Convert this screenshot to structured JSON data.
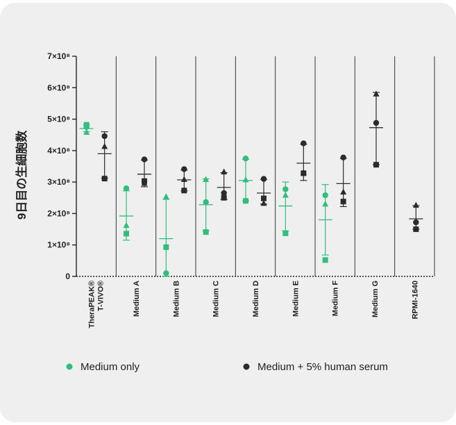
{
  "chart_data": {
    "type": "scatter",
    "ylabel": "9日目の生細胞数",
    "yticks": [
      {
        "value": 0,
        "label": "0"
      },
      {
        "value": 100000000,
        "label": "1×10⁸"
      },
      {
        "value": 200000000,
        "label": "2×10⁸"
      },
      {
        "value": 300000000,
        "label": "3×10⁸"
      },
      {
        "value": 400000000,
        "label": "4×10⁸"
      },
      {
        "value": 500000000,
        "label": "5×10⁸"
      },
      {
        "value": 600000000,
        "label": "6×10⁸"
      },
      {
        "value": 700000000,
        "label": "7×10⁸"
      }
    ],
    "ylim": [
      0,
      700000000
    ],
    "categories": [
      {
        "label1": "TheraPEAK®",
        "label2": "T-VIVO®"
      },
      {
        "label1": "Medium A",
        "label2": ""
      },
      {
        "label1": "Medium B",
        "label2": ""
      },
      {
        "label1": "Medium C",
        "label2": ""
      },
      {
        "label1": "Medium D",
        "label2": ""
      },
      {
        "label1": "Medium E",
        "label2": ""
      },
      {
        "label1": "Medium F",
        "label2": ""
      },
      {
        "label1": "Medium G",
        "label2": ""
      },
      {
        "label1": "RPMI-1640",
        "label2": ""
      }
    ],
    "colors": {
      "medium_only": "#2fbe7d",
      "with_serum": "#2b2b2b"
    },
    "series": [
      {
        "name": "Medium only",
        "groups": [
          {
            "category": 0,
            "mean": 470000000,
            "sd_low": 460000000,
            "sd_high": 482000000,
            "points": [
              {
                "shape": "circle",
                "y": 475000000
              },
              {
                "shape": "triangle",
                "y": 458000000
              },
              {
                "shape": "square",
                "y": 482000000
              }
            ]
          },
          {
            "category": 1,
            "mean": 192000000,
            "sd_low": 115000000,
            "sd_high": 272000000,
            "points": [
              {
                "shape": "circle",
                "y": 280000000
              },
              {
                "shape": "triangle",
                "y": 162000000
              },
              {
                "shape": "square",
                "y": 136000000
              }
            ]
          },
          {
            "category": 2,
            "mean": 120000000,
            "sd_low": 0,
            "sd_high": 245000000,
            "points": [
              {
                "shape": "circle",
                "y": 10000000
              },
              {
                "shape": "triangle",
                "y": 253000000
              },
              {
                "shape": "square",
                "y": 93000000
              }
            ]
          },
          {
            "category": 3,
            "mean": 228000000,
            "sd_low": 145000000,
            "sd_high": 310000000,
            "points": [
              {
                "shape": "circle",
                "y": 236000000
              },
              {
                "shape": "triangle",
                "y": 308000000
              },
              {
                "shape": "square",
                "y": 141000000
              }
            ]
          },
          {
            "category": 4,
            "mean": 305000000,
            "sd_low": 240000000,
            "sd_high": 372000000,
            "points": [
              {
                "shape": "circle",
                "y": 375000000
              },
              {
                "shape": "triangle",
                "y": 307000000
              },
              {
                "shape": "square",
                "y": 240000000
              }
            ]
          },
          {
            "category": 5,
            "mean": 224000000,
            "sd_low": 145000000,
            "sd_high": 300000000,
            "points": [
              {
                "shape": "circle",
                "y": 277000000
              },
              {
                "shape": "triangle",
                "y": 258000000
              },
              {
                "shape": "square",
                "y": 137000000
              }
            ]
          },
          {
            "category": 6,
            "mean": 180000000,
            "sd_low": 68000000,
            "sd_high": 292000000,
            "points": [
              {
                "shape": "circle",
                "y": 258000000
              },
              {
                "shape": "triangle",
                "y": 230000000
              },
              {
                "shape": "square",
                "y": 52000000
              }
            ]
          }
        ]
      },
      {
        "name": "Medium + 5% human serum",
        "groups": [
          {
            "category": 0,
            "mean": 390000000,
            "sd_low": 312000000,
            "sd_high": 460000000,
            "points": [
              {
                "shape": "circle",
                "y": 446000000
              },
              {
                "shape": "triangle",
                "y": 413000000
              },
              {
                "shape": "square",
                "y": 311000000
              }
            ]
          },
          {
            "category": 1,
            "mean": 325000000,
            "sd_low": 285000000,
            "sd_high": 370000000,
            "points": [
              {
                "shape": "circle",
                "y": 372000000
              },
              {
                "shape": "triangle",
                "y": 296000000
              },
              {
                "shape": "square",
                "y": 303000000
              }
            ]
          },
          {
            "category": 2,
            "mean": 307000000,
            "sd_low": 272000000,
            "sd_high": 338000000,
            "points": [
              {
                "shape": "circle",
                "y": 341000000
              },
              {
                "shape": "triangle",
                "y": 308000000
              },
              {
                "shape": "square",
                "y": 273000000
              }
            ]
          },
          {
            "category": 3,
            "mean": 283000000,
            "sd_low": 245000000,
            "sd_high": 330000000,
            "points": [
              {
                "shape": "circle",
                "y": 265000000
              },
              {
                "shape": "triangle",
                "y": 332000000
              },
              {
                "shape": "square",
                "y": 250000000
              }
            ]
          },
          {
            "category": 4,
            "mean": 265000000,
            "sd_low": 230000000,
            "sd_high": 308000000,
            "points": [
              {
                "shape": "circle",
                "y": 310000000
              },
              {
                "shape": "triangle",
                "y": 232000000
              },
              {
                "shape": "square",
                "y": 248000000
              }
            ]
          },
          {
            "category": 5,
            "mean": 360000000,
            "sd_low": 305000000,
            "sd_high": 420000000,
            "points": [
              {
                "shape": "circle",
                "y": 423000000
              },
              {
                "shape": "triangle",
                "y": 330000000
              },
              {
                "shape": "square",
                "y": 328000000
              }
            ]
          },
          {
            "category": 6,
            "mean": 295000000,
            "sd_low": 222000000,
            "sd_high": 375000000,
            "points": [
              {
                "shape": "circle",
                "y": 378000000
              },
              {
                "shape": "triangle",
                "y": 268000000
              },
              {
                "shape": "square",
                "y": 238000000
              }
            ]
          },
          {
            "category": 7,
            "mean": 473000000,
            "sd_low": 355000000,
            "sd_high": 585000000,
            "points": [
              {
                "shape": "circle",
                "y": 488000000
              },
              {
                "shape": "triangle",
                "y": 580000000
              },
              {
                "shape": "square",
                "y": 355000000
              }
            ]
          },
          {
            "category": 8,
            "mean": 183000000,
            "sd_low": 150000000,
            "sd_high": 225000000,
            "points": [
              {
                "shape": "circle",
                "y": 172000000
              },
              {
                "shape": "triangle",
                "y": 226000000
              },
              {
                "shape": "square",
                "y": 150000000
              }
            ]
          }
        ]
      }
    ],
    "legend": [
      {
        "label": "Medium only",
        "color": "#2fbe7d"
      },
      {
        "label": "Medium + 5% human serum",
        "color": "#2b2b2b"
      }
    ],
    "legend_position": "bottom"
  }
}
